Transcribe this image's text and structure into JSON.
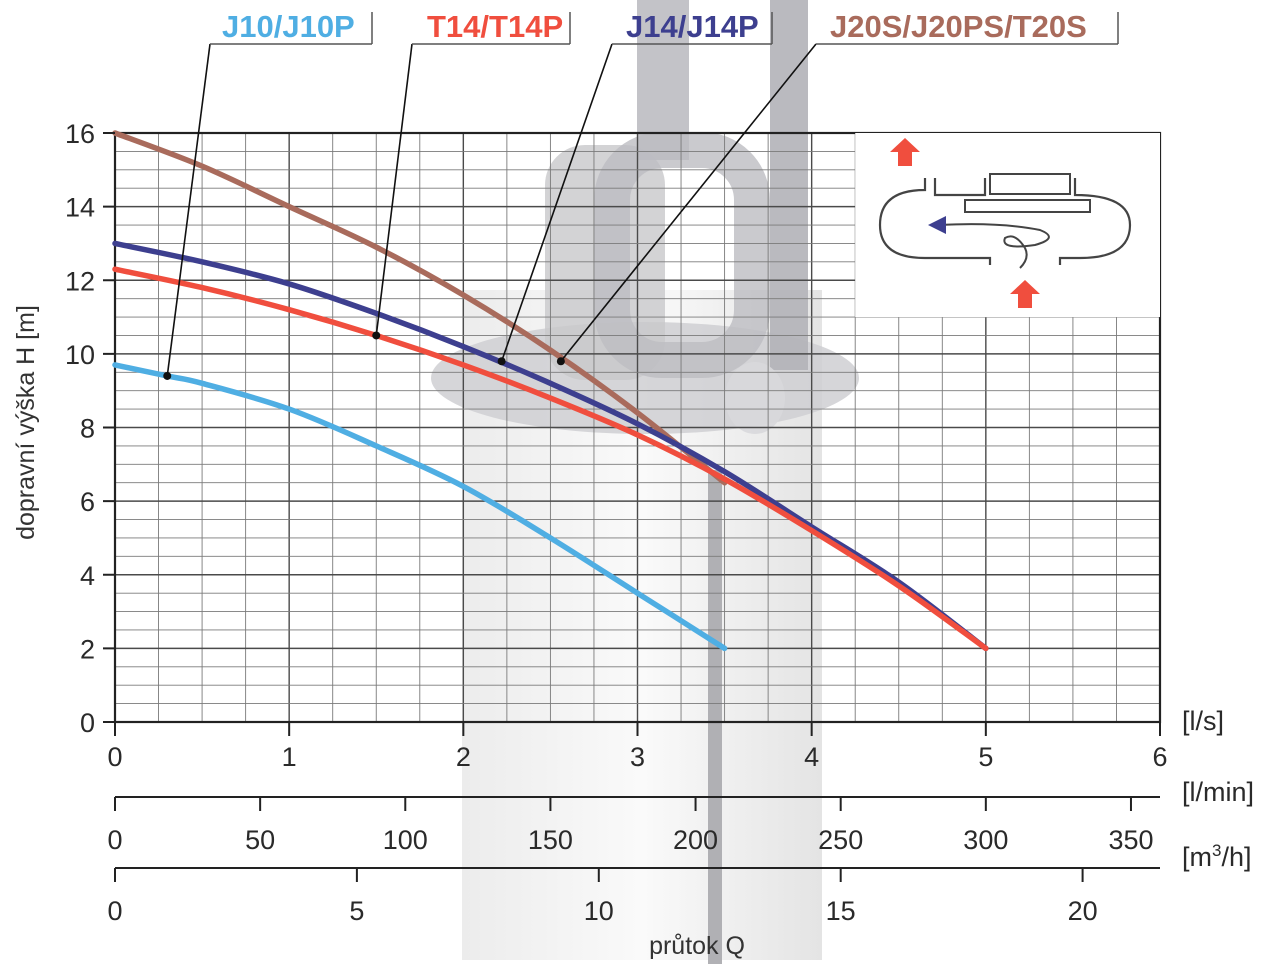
{
  "chart_data": {
    "type": "line",
    "ylabel": "dopravní výška H [m]",
    "xlabel": "průtok Q",
    "xlim": [
      0,
      6
    ],
    "ylim": [
      0,
      16
    ],
    "grid": true,
    "legend": "top, callout labels with leader lines",
    "primary_x_unit": "[l/s]",
    "x_ticks": [
      "0",
      "1",
      "2",
      "3",
      "4",
      "5",
      "6"
    ],
    "y_ticks": [
      "0",
      "2",
      "4",
      "6",
      "8",
      "10",
      "12",
      "14",
      "16"
    ],
    "secondary_axes": [
      {
        "unit": "[l/min]",
        "ticks": [
          "0",
          "50",
          "100",
          "150",
          "200",
          "250",
          "300",
          "350"
        ],
        "values": [
          0,
          50,
          100,
          150,
          200,
          250,
          300,
          350
        ],
        "per_l_s": 60
      },
      {
        "unit": "[m3/h]",
        "unit_base": "[m",
        "unit_sup": "3",
        "unit_tail": "/h]",
        "ticks": [
          "0",
          "5",
          "10",
          "15",
          "20"
        ],
        "values": [
          0,
          5,
          10,
          15,
          20
        ],
        "per_l_s": 3.6
      }
    ],
    "series": [
      {
        "name": "J10/J10P",
        "color": "#4faee3",
        "x": [
          0,
          0.3,
          0.5,
          1.0,
          1.5,
          2.0,
          2.5,
          3.0,
          3.5
        ],
        "y": [
          9.7,
          9.4,
          9.2,
          8.5,
          7.5,
          6.4,
          5.0,
          3.5,
          2.0
        ],
        "marker": [
          0.3,
          9.4
        ]
      },
      {
        "name": "T14/T14P",
        "color": "#f04e3e",
        "x": [
          0,
          0.5,
          1.0,
          1.5,
          2.0,
          2.5,
          3.0,
          3.5,
          4.0,
          4.5,
          5.0
        ],
        "y": [
          12.3,
          11.8,
          11.2,
          10.5,
          9.7,
          8.8,
          7.8,
          6.6,
          5.2,
          3.7,
          2.0
        ],
        "marker": [
          1.5,
          10.5
        ]
      },
      {
        "name": "J14/J14P",
        "color": "#3d3f8f",
        "x": [
          0,
          0.5,
          1.0,
          1.5,
          2.0,
          2.5,
          3.0,
          3.5,
          4.0,
          4.5,
          5.0
        ],
        "y": [
          13.0,
          12.5,
          11.9,
          11.1,
          10.2,
          9.2,
          8.1,
          6.8,
          5.3,
          3.8,
          2.0
        ],
        "marker": [
          2.22,
          9.8
        ]
      },
      {
        "name": "J20S/J20PS/T20S",
        "color": "#a96b5c",
        "x": [
          0,
          0.5,
          1.0,
          1.5,
          2.0,
          2.5,
          3.0,
          3.5
        ],
        "y": [
          16.0,
          15.1,
          14.0,
          12.9,
          11.6,
          10.1,
          8.4,
          6.5
        ],
        "marker": [
          2.56,
          9.8
        ]
      }
    ],
    "inset_colors": {
      "arrow": "#f04e3e",
      "flow_arrow": "#3d3f8f",
      "outline": "#444444"
    }
  }
}
